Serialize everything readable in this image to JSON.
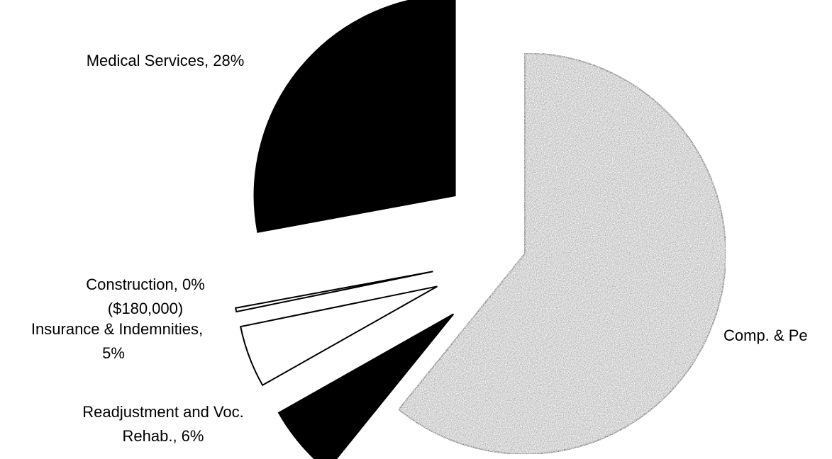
{
  "chart_data": {
    "type": "pie",
    "values": [
      61,
      6,
      5,
      0.3,
      28
    ],
    "value_labels": [
      [
        "Comp. & Pe"
      ],
      [
        "Readjustment and Voc.",
        "Rehab., 6%"
      ],
      [
        "Insurance & Indemnities,",
        "5%"
      ],
      [
        "Construction, 0%",
        "($180,000)"
      ],
      [
        "Medical Services, 28%"
      ]
    ],
    "colors": [
      "#7a7a7a",
      "#000000",
      "#ffffff",
      "#ffffff",
      "#000000"
    ]
  }
}
